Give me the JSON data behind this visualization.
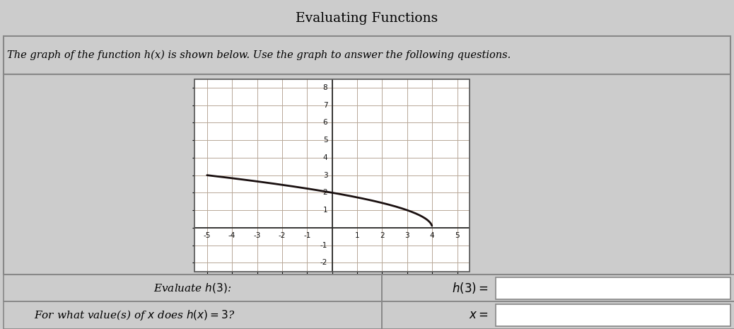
{
  "title": "Evaluating Functions",
  "subtitle": "The graph of the function h(x) is shown below. Use the graph to answer the following questions.",
  "bg_color": "#cccccc",
  "panel_bg": "#d4d4d4",
  "white": "#ffffff",
  "border_color": "#888888",
  "grid_color": "#b8a898",
  "curve_color": "#1a1010",
  "xlim": [
    -5.5,
    5.5
  ],
  "ylim": [
    -2.5,
    8.5
  ],
  "xticks": [
    -5,
    -4,
    -3,
    -2,
    -1,
    0,
    1,
    2,
    3,
    4,
    5
  ],
  "yticks": [
    -2,
    -1,
    0,
    1,
    2,
    3,
    4,
    5,
    6,
    7,
    8
  ],
  "row1_left": "Evaluate $h(3)$:",
  "row1_right_label": "$h(3) = $",
  "row2_left": "For what value(s) of $x$ does $h(x) = 3$?",
  "row2_right_label": "$x = $",
  "x_start": -5.0,
  "x_end": 4.97
}
